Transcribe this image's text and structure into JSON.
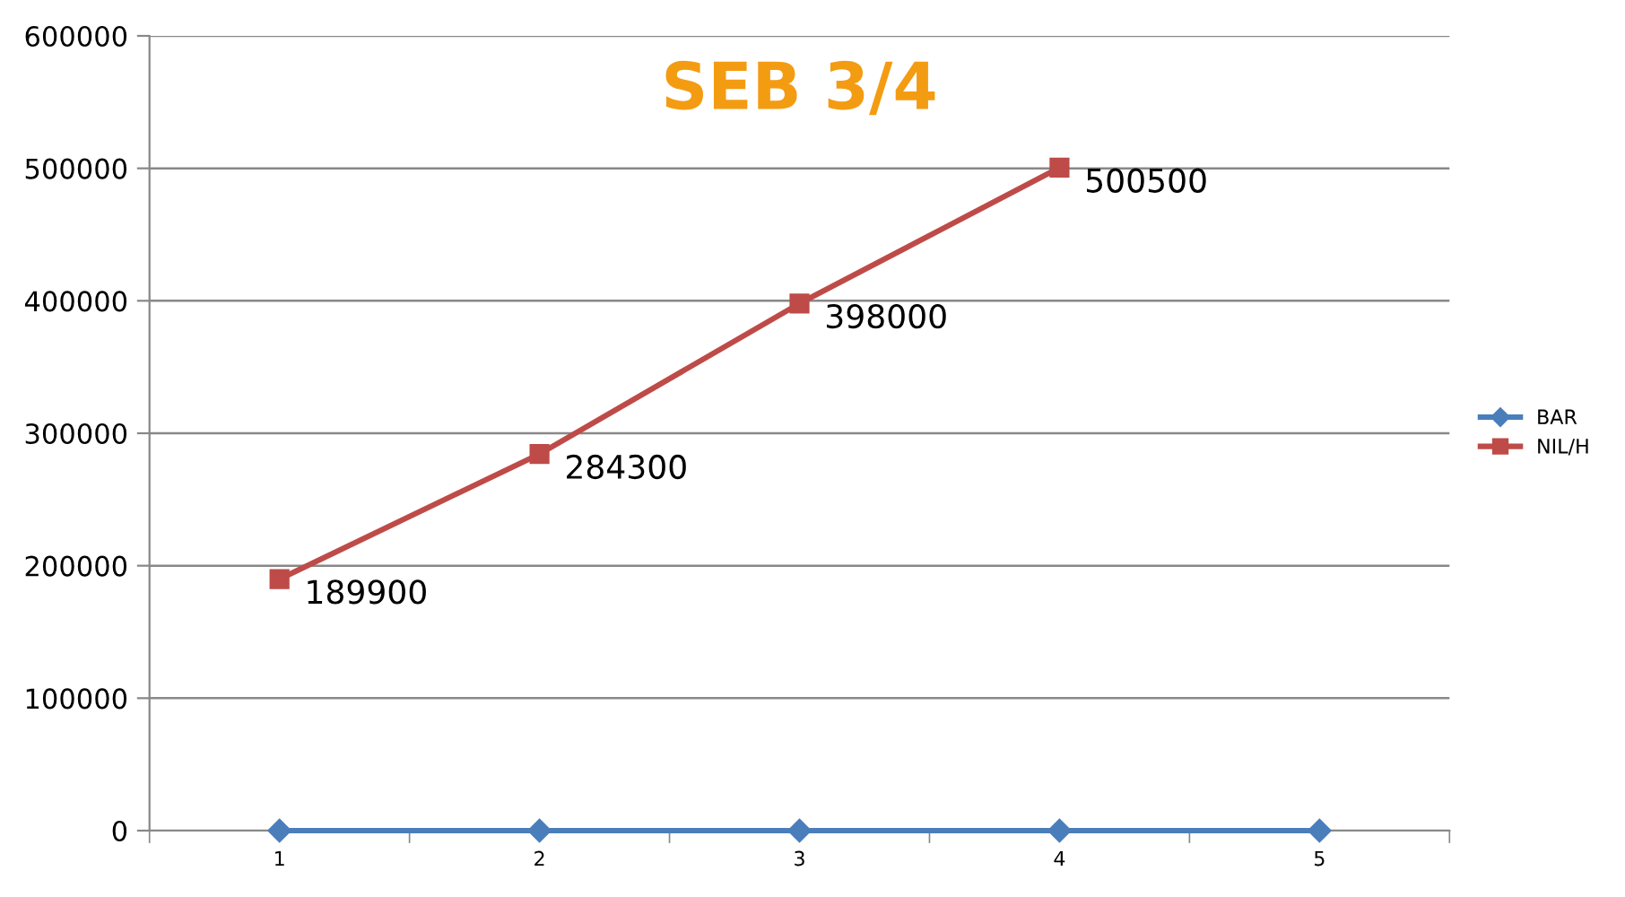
{
  "chart_data": {
    "type": "line",
    "title": "SEB 3/4",
    "categories": [
      "1",
      "2",
      "3",
      "4",
      "5"
    ],
    "series": [
      {
        "name": "BAR",
        "color": "#4a7ebb",
        "marker": "diamond",
        "values": [
          0,
          0,
          0,
          0,
          0
        ]
      },
      {
        "name": "NIL/H",
        "color": "#be4b48",
        "marker": "square",
        "values": [
          189900,
          284300,
          398000,
          500500,
          null
        ],
        "value_labels": [
          "189900",
          "284300",
          "398000",
          "500500",
          null
        ]
      }
    ],
    "ylim": [
      0,
      600000
    ],
    "yticks": [
      0,
      100000,
      200000,
      300000,
      400000,
      500000,
      600000
    ],
    "grid": "y",
    "legend": "right",
    "line_style": "solid"
  }
}
